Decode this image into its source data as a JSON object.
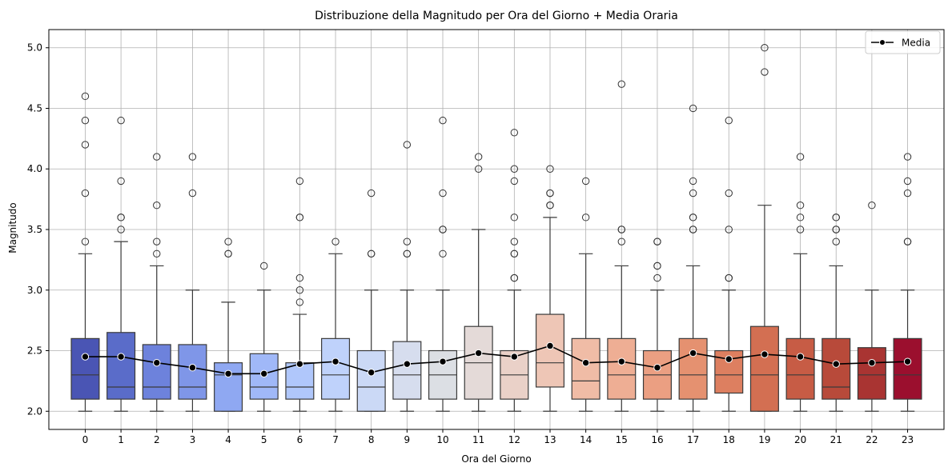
{
  "chart_data": {
    "type": "box",
    "title": "Distribuzione della Magnitudo per Ora del Giorno + Media Oraria",
    "xlabel": "Ora del Giorno",
    "ylabel": "Magnitudo",
    "ylim": [
      1.85,
      5.15
    ],
    "yticks": [
      "2.0",
      "2.5",
      "3.0",
      "3.5",
      "4.0",
      "4.5",
      "5.0"
    ],
    "grid": true,
    "legend": {
      "position": "top-right",
      "entries": [
        "Media"
      ]
    },
    "categories": [
      "0",
      "1",
      "2",
      "3",
      "4",
      "5",
      "6",
      "7",
      "8",
      "9",
      "10",
      "11",
      "12",
      "13",
      "14",
      "15",
      "16",
      "17",
      "18",
      "19",
      "20",
      "21",
      "22",
      "23"
    ],
    "boxes": [
      {
        "min": 2.0,
        "q1": 2.1,
        "median": 2.3,
        "q3": 2.6,
        "max": 3.3,
        "outliers": [
          3.4,
          3.8,
          4.2,
          4.4,
          4.6
        ]
      },
      {
        "min": 2.0,
        "q1": 2.1,
        "median": 2.2,
        "q3": 2.65,
        "max": 3.4,
        "outliers": [
          3.5,
          3.6,
          3.6,
          3.9,
          4.4
        ]
      },
      {
        "min": 2.0,
        "q1": 2.1,
        "median": 2.2,
        "q3": 2.55,
        "max": 3.2,
        "outliers": [
          3.3,
          3.4,
          3.7,
          4.1
        ]
      },
      {
        "min": 2.0,
        "q1": 2.1,
        "median": 2.2,
        "q3": 2.55,
        "max": 3.0,
        "outliers": [
          3.8,
          4.1
        ]
      },
      {
        "min": 2.0,
        "q1": 2.0,
        "median": 2.3,
        "q3": 2.4,
        "max": 2.9,
        "outliers": [
          3.3,
          3.3,
          3.4
        ]
      },
      {
        "min": 2.0,
        "q1": 2.1,
        "median": 2.2,
        "q3": 2.475,
        "max": 3.0,
        "outliers": [
          3.2
        ]
      },
      {
        "min": 2.0,
        "q1": 2.1,
        "median": 2.2,
        "q3": 2.4,
        "max": 2.8,
        "outliers": [
          2.9,
          3.0,
          3.1,
          3.6,
          3.6,
          3.9
        ]
      },
      {
        "min": 2.0,
        "q1": 2.1,
        "median": 2.3,
        "q3": 2.6,
        "max": 3.3,
        "outliers": [
          3.4
        ]
      },
      {
        "min": 2.0,
        "q1": 2.0,
        "median": 2.2,
        "q3": 2.5,
        "max": 3.0,
        "outliers": [
          3.3,
          3.3,
          3.8
        ]
      },
      {
        "min": 2.0,
        "q1": 2.1,
        "median": 2.3,
        "q3": 2.575,
        "max": 3.0,
        "outliers": [
          3.3,
          3.3,
          3.4,
          4.2
        ]
      },
      {
        "min": 2.0,
        "q1": 2.1,
        "median": 2.3,
        "q3": 2.5,
        "max": 3.0,
        "outliers": [
          3.3,
          3.5,
          3.5,
          3.8,
          4.4
        ]
      },
      {
        "min": 2.0,
        "q1": 2.1,
        "median": 2.4,
        "q3": 2.7,
        "max": 3.5,
        "outliers": [
          4.0,
          4.1
        ]
      },
      {
        "min": 2.0,
        "q1": 2.1,
        "median": 2.3,
        "q3": 2.5,
        "max": 3.0,
        "outliers": [
          3.1,
          3.1,
          3.3,
          3.3,
          3.4,
          3.6,
          3.9,
          4.0,
          4.3
        ]
      },
      {
        "min": 2.0,
        "q1": 2.2,
        "median": 2.4,
        "q3": 2.8,
        "max": 3.6,
        "outliers": [
          3.7,
          3.7,
          3.8,
          3.8,
          4.0
        ]
      },
      {
        "min": 2.0,
        "q1": 2.1,
        "median": 2.25,
        "q3": 2.6,
        "max": 3.3,
        "outliers": [
          3.6,
          3.9
        ]
      },
      {
        "min": 2.0,
        "q1": 2.1,
        "median": 2.3,
        "q3": 2.6,
        "max": 3.2,
        "outliers": [
          3.4,
          3.5,
          3.5,
          4.7
        ]
      },
      {
        "min": 2.0,
        "q1": 2.1,
        "median": 2.3,
        "q3": 2.5,
        "max": 3.0,
        "outliers": [
          3.1,
          3.2,
          3.2,
          3.4,
          3.4
        ]
      },
      {
        "min": 2.0,
        "q1": 2.1,
        "median": 2.3,
        "q3": 2.6,
        "max": 3.2,
        "outliers": [
          3.5,
          3.5,
          3.6,
          3.6,
          3.8,
          3.9,
          4.5
        ]
      },
      {
        "min": 2.0,
        "q1": 2.15,
        "median": 2.3,
        "q3": 2.5,
        "max": 3.0,
        "outliers": [
          3.1,
          3.1,
          3.5,
          3.8,
          4.4
        ]
      },
      {
        "min": 2.0,
        "q1": 2.0,
        "median": 2.3,
        "q3": 2.7,
        "max": 3.7,
        "outliers": [
          4.8,
          5.0
        ]
      },
      {
        "min": 2.0,
        "q1": 2.1,
        "median": 2.3,
        "q3": 2.6,
        "max": 3.3,
        "outliers": [
          3.5,
          3.6,
          3.7,
          4.1
        ]
      },
      {
        "min": 2.0,
        "q1": 2.1,
        "median": 2.2,
        "q3": 2.6,
        "max": 3.2,
        "outliers": [
          3.4,
          3.5,
          3.5,
          3.6,
          3.6
        ]
      },
      {
        "min": 2.0,
        "q1": 2.1,
        "median": 2.3,
        "q3": 2.525,
        "max": 3.0,
        "outliers": [
          3.7
        ]
      },
      {
        "min": 2.0,
        "q1": 2.1,
        "median": 2.3,
        "q3": 2.6,
        "max": 3.0,
        "outliers": [
          3.4,
          3.4,
          3.8,
          3.9,
          4.1
        ]
      }
    ],
    "box_colors": [
      "#4a55b4",
      "#5a6cc9",
      "#6d82dc",
      "#7f96e8",
      "#8fa8f2",
      "#a0b8f8",
      "#b0c7fb",
      "#bfd2fb",
      "#cbd9f6",
      "#d6ddee",
      "#dcdfe4",
      "#e4dad8",
      "#ead1c8",
      "#eec6b6",
      "#f0bca6",
      "#eeae94",
      "#eb9f82",
      "#e59170",
      "#dd7f60",
      "#d36f52",
      "#c75c45",
      "#b84a3a",
      "#a93432",
      "#9b0f2e"
    ],
    "series": [
      {
        "name": "Media",
        "color": "#000000",
        "values": [
          2.45,
          2.45,
          2.4,
          2.36,
          2.31,
          2.31,
          2.39,
          2.41,
          2.32,
          2.39,
          2.41,
          2.48,
          2.45,
          2.54,
          2.4,
          2.41,
          2.36,
          2.48,
          2.43,
          2.47,
          2.45,
          2.39,
          2.4,
          2.41
        ]
      }
    ]
  }
}
